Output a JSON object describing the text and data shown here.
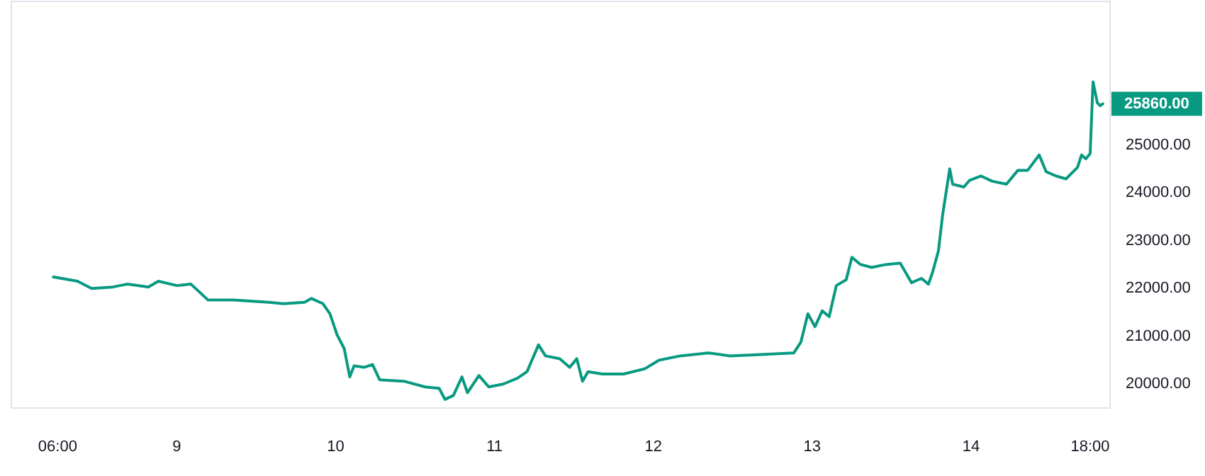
{
  "chart_data": {
    "type": "line",
    "line_style": "solid",
    "marker": "none",
    "grid": false,
    "series": [
      {
        "color": "#089981",
        "x": [
          "--03-08T05:21",
          "--03-08T09:00",
          "--03-08T11:08",
          "--03-08T14:21",
          "--03-08T16:31",
          "--03-08T19:42",
          "--03-08T21:13",
          "--03-09T00:00",
          "--03-09T02:08",
          "--03-09T04:42",
          "--03-09T08:34",
          "--03-09T13:55",
          "--03-09T16:05",
          "--03-09T19:18",
          "--03-09T20:21",
          "--03-09T22:05",
          "--03-09T23:08",
          "--03-10T00:13",
          "--03-10T01:18",
          "--03-10T02:08",
          "--03-10T02:47",
          "--03-10T04:18",
          "--03-10T05:34",
          "--03-10T06:39",
          "--03-10T10:18",
          "--03-10T13:31",
          "--03-10T15:39",
          "--03-10T16:31",
          "--03-10T17:47",
          "--03-10T19:05",
          "--03-10T19:55",
          "--03-10T21:39",
          "--03-10T23:08",
          "--03-11T01:18",
          "--03-11T03:26",
          "--03-11T04:55",
          "--03-11T06:39",
          "--03-11T07:42",
          "--03-11T09:52",
          "--03-11T11:21",
          "--03-11T12:26",
          "--03-11T13:18",
          "--03-11T14:08",
          "--03-11T16:18",
          "--03-11T19:31",
          "--03-11T22:42",
          "--03-12T00:52",
          "--03-12T04:05",
          "--03-12T08:21",
          "--03-12T11:34",
          "--03-12T16:55",
          "--03-12T21:13",
          "--03-12T22:18",
          "--03-12T23:21",
          "--03-13T00:26",
          "--03-13T01:31",
          "--03-13T02:34",
          "--03-13T03:39",
          "--03-13T05:08",
          "--03-13T06:00",
          "--03-13T07:18",
          "--03-13T09:00",
          "--03-13T11:08",
          "--03-13T13:18",
          "--03-13T15:00",
          "--03-13T16:31",
          "--03-13T17:34",
          "--03-13T18:13",
          "--03-13T19:05",
          "--03-13T19:42",
          "--03-13T20:47",
          "--03-13T21:13",
          "--03-13T22:55",
          "--03-13T23:47",
          "--03-14T01:31",
          "--03-14T03:13",
          "--03-14T05:21",
          "--03-14T07:05",
          "--03-14T08:34",
          "--03-14T10:18",
          "--03-14T11:21",
          "--03-14T12:52",
          "--03-14T14:21",
          "--03-14T16:05",
          "--03-14T16:42",
          "--03-14T17:21",
          "--03-14T18:00",
          "--03-14T18:26",
          "--03-14T19:05",
          "--03-14T19:31",
          "--03-14T19:55"
        ],
        "values": [
          22240,
          22150,
          22000,
          22030,
          22090,
          22030,
          22150,
          22060,
          22090,
          21760,
          21760,
          21710,
          21680,
          21710,
          21790,
          21680,
          21470,
          21030,
          20740,
          20150,
          20380,
          20350,
          20410,
          20090,
          20060,
          19940,
          19910,
          19680,
          19760,
          20150,
          19820,
          20180,
          19940,
          20000,
          20120,
          20260,
          20820,
          20590,
          20530,
          20350,
          20530,
          20060,
          20260,
          20210,
          20210,
          20320,
          20500,
          20590,
          20650,
          20590,
          20620,
          20650,
          20880,
          21470,
          21200,
          21530,
          21410,
          22060,
          22180,
          22650,
          22500,
          22440,
          22500,
          22530,
          22120,
          22210,
          22090,
          22350,
          22790,
          23530,
          24500,
          24180,
          24120,
          24260,
          24350,
          24240,
          24180,
          24470,
          24470,
          24790,
          24440,
          24350,
          24290,
          24530,
          24790,
          24710,
          24820,
          26320,
          25880,
          25820,
          25860
        ]
      }
    ],
    "xlim": [
      "--03-07T23:00",
      "--03-14T21:00"
    ],
    "ylim": [
      19500,
      28000
    ],
    "xticks": [
      {
        "value": "--03-08T06:00",
        "label": "06:00"
      },
      {
        "value": "--03-09",
        "label": "9"
      },
      {
        "value": "--03-10",
        "label": "10"
      },
      {
        "value": "--03-11",
        "label": "11"
      },
      {
        "value": "--03-12",
        "label": "12"
      },
      {
        "value": "--03-13",
        "label": "13"
      },
      {
        "value": "--03-14",
        "label": "14"
      },
      {
        "value": "--03-14T18:00",
        "label": "18:00"
      }
    ],
    "yticks": [
      {
        "value": 20000,
        "label": "20000.00"
      },
      {
        "value": 21000,
        "label": "21000.00"
      },
      {
        "value": 22000,
        "label": "22000.00"
      },
      {
        "value": 23000,
        "label": "23000.00"
      },
      {
        "value": 24000,
        "label": "24000.00"
      },
      {
        "value": 25000,
        "label": "25000.00"
      }
    ],
    "annotations": [
      {
        "text": "25860.00",
        "x": "--03-14T19:55",
        "y": 25860
      }
    ]
  }
}
